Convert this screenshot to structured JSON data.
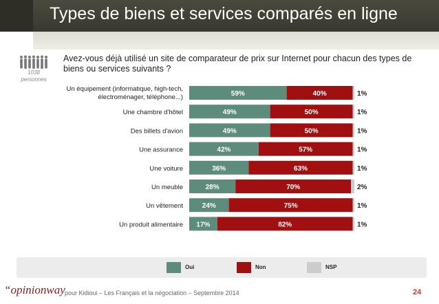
{
  "header": {
    "title": "Types de biens et services comparés en ligne"
  },
  "sample": {
    "count": "1038",
    "unit": "personnes"
  },
  "question": "Avez-vous déjà utilisé un site de comparateur de prix sur Internet pour chacun des types de biens ou services suivants ?",
  "colors": {
    "oui": "#5d8c7c",
    "non": "#a01010",
    "nsp": "#cccccc"
  },
  "chart_data": {
    "type": "bar",
    "orientation": "horizontal",
    "stacked": true,
    "categories": [
      "Un équipement (informatique, high-tech, électroménager, téléphone...)",
      "Une chambre d'hôtel",
      "Des billets d'avion",
      "Une assurance",
      "Une voiture",
      "Un meuble",
      "Un vêtement",
      "Un produit alimentaire"
    ],
    "series": [
      {
        "name": "Oui",
        "values": [
          59,
          49,
          49,
          42,
          36,
          28,
          24,
          17
        ],
        "labels": [
          "59%",
          "49%",
          "49%",
          "42%",
          "36%",
          "28%",
          "24%",
          "17%"
        ]
      },
      {
        "name": "Non",
        "values": [
          40,
          50,
          50,
          57,
          63,
          70,
          75,
          82
        ],
        "labels": [
          "40%",
          "50%",
          "50%",
          "57%",
          "63%",
          "70%",
          "75%",
          "82%"
        ]
      },
      {
        "name": "NSP",
        "values": [
          1,
          1,
          1,
          1,
          1,
          2,
          1,
          1
        ],
        "labels": [
          "1%",
          "1%",
          "1%",
          "1%",
          "1%",
          "2%",
          "1%",
          "1%"
        ]
      }
    ],
    "legend": "bottom"
  },
  "footer": {
    "brand": "“opinionway",
    "text": "pour Kidioui – Les Français et la négociation – Septembre 2014",
    "page": "24"
  }
}
